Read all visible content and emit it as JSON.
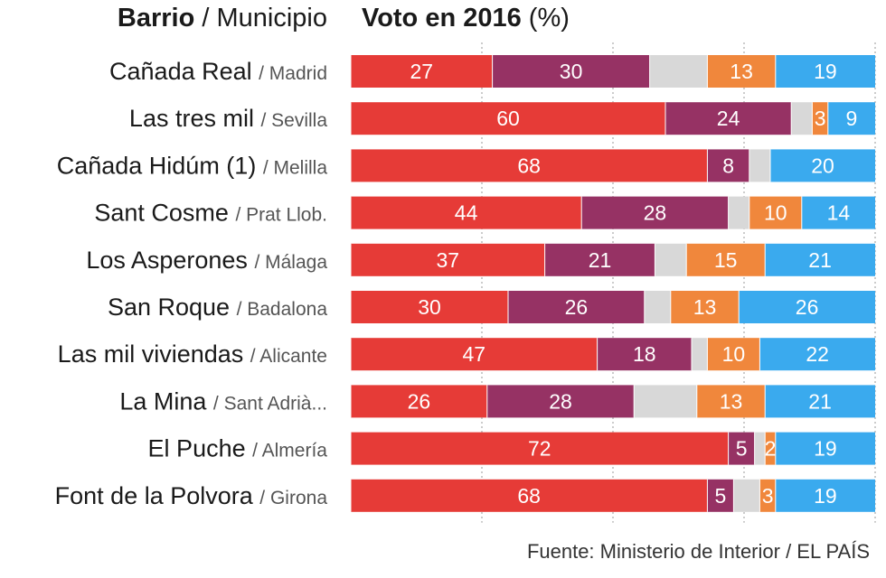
{
  "header": {
    "left_bold": "Barrio",
    "left_sep": " / ",
    "left_normal": "Municipio",
    "right_bold": "Voto en 2016",
    "right_normal": " (%)"
  },
  "source": "Fuente: Ministerio de Interior / EL PAÍS",
  "colors": {
    "psoe": "#e63b37",
    "podemos": "#963264",
    "other": "#d8d8d8",
    "cs": "#f0873c",
    "pp": "#3aaaee",
    "grid": "#999999"
  },
  "chart_data": {
    "type": "bar",
    "orientation": "horizontal",
    "stacked": true,
    "title": "Voto en 2016 (%)",
    "xlim": [
      0,
      100
    ],
    "grid": true,
    "categories": [
      {
        "barrio": "Cañada Real",
        "municipio": "/ Madrid"
      },
      {
        "barrio": "Las tres mil",
        "municipio": "/ Sevilla"
      },
      {
        "barrio": "Cañada Hidúm (1)",
        "municipio": "/ Melilla"
      },
      {
        "barrio": "Sant Cosme",
        "municipio": "/ Prat Llob."
      },
      {
        "barrio": "Los Asperones",
        "municipio": "/ Málaga"
      },
      {
        "barrio": "San Roque",
        "municipio": "/ Badalona"
      },
      {
        "barrio": "Las mil viviendas",
        "municipio": "/ Alicante"
      },
      {
        "barrio": "La Mina",
        "municipio": "/ Sant Adrià..."
      },
      {
        "barrio": "El Puche",
        "municipio": "/ Almería"
      },
      {
        "barrio": "Font de la Polvora",
        "municipio": "/ Girona"
      }
    ],
    "series": [
      {
        "key": "psoe",
        "values": [
          27,
          60,
          68,
          44,
          37,
          30,
          47,
          26,
          72,
          68
        ],
        "labels": [
          "27",
          "60",
          "68",
          "44",
          "37",
          "30",
          "47",
          "26",
          "72",
          "68"
        ]
      },
      {
        "key": "podemos",
        "values": [
          30,
          24,
          8,
          28,
          21,
          26,
          18,
          28,
          5,
          5
        ],
        "labels": [
          "30",
          "24",
          "8",
          "28",
          "21",
          "26",
          "18",
          "28",
          "5",
          "5"
        ]
      },
      {
        "key": "other",
        "values": [
          11,
          4,
          4,
          4,
          6,
          5,
          3,
          12,
          2,
          5
        ],
        "labels": [
          "",
          "",
          "",
          "",
          "",
          "",
          "",
          "",
          "",
          ""
        ]
      },
      {
        "key": "cs",
        "values": [
          13,
          3,
          0,
          10,
          15,
          13,
          10,
          13,
          2,
          3
        ],
        "labels": [
          "13",
          "3",
          "",
          "10",
          "15",
          "13",
          "10",
          "13",
          "2",
          "3"
        ]
      },
      {
        "key": "pp",
        "values": [
          19,
          9,
          20,
          14,
          21,
          26,
          22,
          21,
          19,
          19
        ],
        "labels": [
          "19",
          "9",
          "20",
          "14",
          "21",
          "26",
          "22",
          "21",
          "19",
          "19"
        ]
      }
    ]
  }
}
